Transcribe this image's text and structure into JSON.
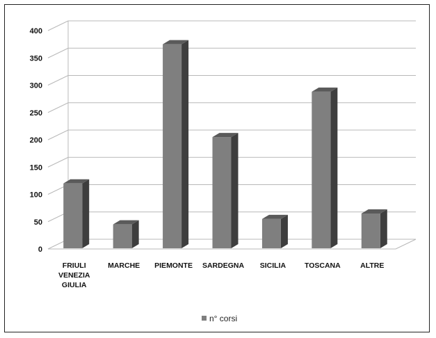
{
  "chart_data": {
    "type": "bar",
    "style": "3d-column",
    "categories": [
      [
        "FRIULI",
        "VENEZIA",
        "GIULIA"
      ],
      [
        "MARCHE"
      ],
      [
        "PIEMONTE"
      ],
      [
        "SARDEGNA"
      ],
      [
        "SICILIA"
      ],
      [
        "TOSCANA"
      ],
      [
        "ALTRE"
      ]
    ],
    "series": [
      {
        "name": "n° corsi",
        "values": [
          120,
          45,
          375,
          205,
          55,
          288,
          65
        ]
      }
    ],
    "yticks": [
      "0",
      "50",
      "100",
      "150",
      "200",
      "250",
      "300",
      "350",
      "400"
    ],
    "ylim": [
      0,
      400
    ],
    "grid": true,
    "legend_position": "bottom",
    "colors": {
      "bar_front": "#7f7f7f",
      "bar_top": "#5a5a5a",
      "bar_side": "#3e3e3e",
      "grid": "#b8b8b8"
    }
  }
}
